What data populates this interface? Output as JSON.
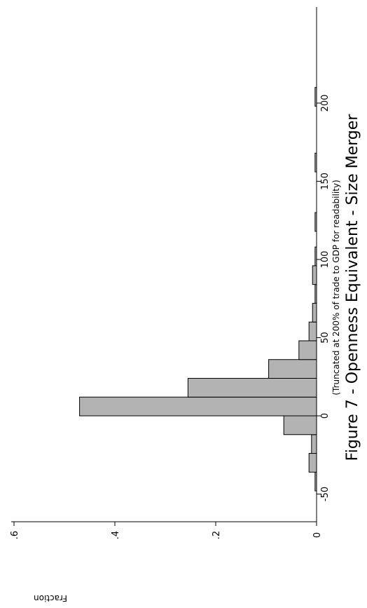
{
  "chart_data": {
    "type": "bar",
    "title": "Figure 7 - Openness Equivalent - Size Merger",
    "xlabel": "(Truncated at 200% of trade to GDP for readability)",
    "ylabel": "Fraction",
    "xlim": [
      -50,
      200
    ],
    "ylim": [
      0,
      0.6
    ],
    "x_ticks": [
      -50,
      0,
      50,
      100,
      150,
      200
    ],
    "x_tick_labels": [
      "-50",
      "0",
      "50",
      "100",
      "150",
      "200"
    ],
    "y_ticks": [
      0,
      0.2,
      0.4,
      0.6
    ],
    "y_tick_labels": [
      "0",
      ".2",
      ".4",
      ".6"
    ],
    "grid": false,
    "colors": {
      "bar_fill": "#b3b3b3",
      "bar_stroke": "#000000",
      "axis": "#000000",
      "text": "#000000"
    },
    "bins": [
      {
        "x0": -48,
        "x1": -36,
        "value": 0.003
      },
      {
        "x0": -36,
        "x1": -24,
        "value": 0.015
      },
      {
        "x0": -24,
        "x1": -12,
        "value": 0.01
      },
      {
        "x0": -12,
        "x1": 0,
        "value": 0.065
      },
      {
        "x0": 0,
        "x1": 12,
        "value": 0.47
      },
      {
        "x0": 12,
        "x1": 24,
        "value": 0.255
      },
      {
        "x0": 24,
        "x1": 36,
        "value": 0.095
      },
      {
        "x0": 36,
        "x1": 48,
        "value": 0.035
      },
      {
        "x0": 48,
        "x1": 60,
        "value": 0.015
      },
      {
        "x0": 60,
        "x1": 72,
        "value": 0.008
      },
      {
        "x0": 72,
        "x1": 84,
        "value": 0.003
      },
      {
        "x0": 84,
        "x1": 96,
        "value": 0.008
      },
      {
        "x0": 96,
        "x1": 108,
        "value": 0.003
      },
      {
        "x0": 118,
        "x1": 130,
        "value": 0.003
      },
      {
        "x0": 156,
        "x1": 168,
        "value": 0.003
      },
      {
        "x0": 198,
        "x1": 210,
        "value": 0.003
      }
    ]
  }
}
